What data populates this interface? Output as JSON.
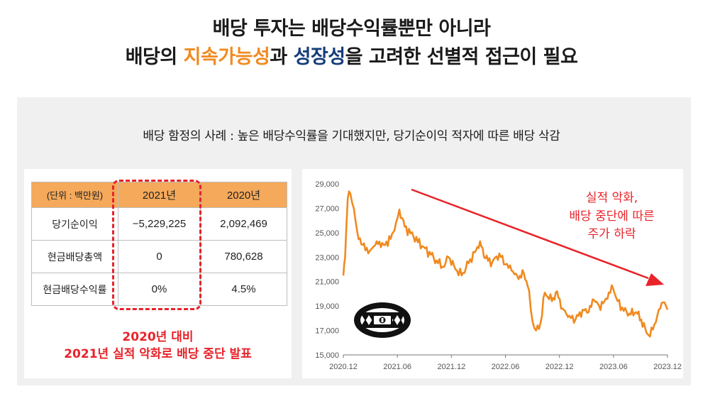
{
  "headline": {
    "line1": "배당 투자는 배당수익률뿐만 아니라",
    "line2_a": "배당의 ",
    "line2_b": "지속가능성",
    "line2_c": "과 ",
    "line2_d": "성장성",
    "line2_e": "을 고려한 선별적 접근이 필요"
  },
  "subtitle": "배당 함정의 사례 : 높은 배당수익률을 기대했지만, 당기순이익 적자에 따른 배당 삭감",
  "table": {
    "headers": [
      "(단위 : 백만원)",
      "2021년",
      "2020년"
    ],
    "rows": [
      [
        "당기순이익",
        "−5,229,225",
        "2,092,469"
      ],
      [
        "현금배당총액",
        "0",
        "780,628"
      ],
      [
        "현금배당수익률",
        "0%",
        "4.5%"
      ]
    ]
  },
  "table_note": {
    "line1": "2020년 대비",
    "line2": "2021년 실적 악화로 배당 중단 발표"
  },
  "chart_annotation": {
    "line1": "실적 악화,",
    "line2": "배당 중단에 따른",
    "line3": "주가 하락"
  },
  "colors": {
    "accent_orange": "#f08a20",
    "navy": "#163d7a",
    "alert_red": "#e8232a",
    "line": "#f08a20"
  },
  "chart_data": {
    "type": "line",
    "title": "",
    "xlabel": "",
    "ylabel": "",
    "x_ticks": [
      "2020.12",
      "2021.06",
      "2021.12",
      "2022.06",
      "2022.12",
      "2023.06",
      "2023.12"
    ],
    "y_ticks": [
      15000,
      17000,
      19000,
      21000,
      23000,
      25000,
      27000,
      29000
    ],
    "ylim": [
      15000,
      29000
    ],
    "xlim": [
      0,
      37
    ],
    "grid": false,
    "series": [
      {
        "values": [
          [
            0,
            21500
          ],
          [
            0.2,
            23000
          ],
          [
            0.5,
            27800
          ],
          [
            0.8,
            28200
          ],
          [
            1.2,
            27000
          ],
          [
            1.6,
            25000
          ],
          [
            2.2,
            24000
          ],
          [
            3,
            23500
          ],
          [
            3.8,
            24300
          ],
          [
            4.6,
            24000
          ],
          [
            5.4,
            24500
          ],
          [
            6,
            25800
          ],
          [
            6.4,
            26900
          ],
          [
            7,
            25500
          ],
          [
            8,
            24700
          ],
          [
            9,
            23900
          ],
          [
            10,
            23200
          ],
          [
            10.8,
            22500
          ],
          [
            11.5,
            22200
          ],
          [
            12,
            23000
          ],
          [
            12.8,
            22000
          ],
          [
            13.5,
            21500
          ],
          [
            14.3,
            22500
          ],
          [
            15,
            23400
          ],
          [
            15.6,
            24300
          ],
          [
            16.2,
            22900
          ],
          [
            17,
            22600
          ],
          [
            17.8,
            23300
          ],
          [
            18.5,
            22400
          ],
          [
            19.2,
            21900
          ],
          [
            20,
            21200
          ],
          [
            20.6,
            21700
          ],
          [
            21.2,
            20300
          ],
          [
            21.6,
            17700
          ],
          [
            22,
            17000
          ],
          [
            22.5,
            17600
          ],
          [
            23,
            20100
          ],
          [
            23.8,
            19400
          ],
          [
            24.4,
            20200
          ],
          [
            25,
            18800
          ],
          [
            25.8,
            18200
          ],
          [
            26.5,
            17900
          ],
          [
            27.3,
            18700
          ],
          [
            28,
            18500
          ],
          [
            28.6,
            19500
          ],
          [
            29.2,
            19000
          ],
          [
            29.8,
            19400
          ],
          [
            30.3,
            20100
          ],
          [
            30.8,
            20400
          ],
          [
            31.3,
            19400
          ],
          [
            32,
            18600
          ],
          [
            32.8,
            18300
          ],
          [
            33.4,
            18500
          ],
          [
            34,
            17900
          ],
          [
            34.6,
            16800
          ],
          [
            35,
            16500
          ],
          [
            35.5,
            17500
          ],
          [
            36,
            18700
          ],
          [
            36.5,
            19300
          ],
          [
            37,
            18700
          ]
        ]
      }
    ]
  }
}
